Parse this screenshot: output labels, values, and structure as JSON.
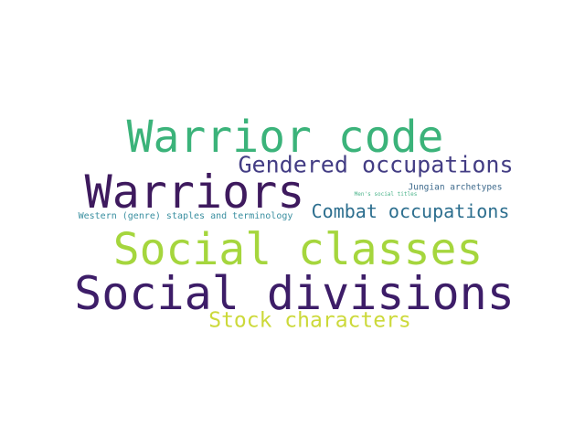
{
  "word_cloud": {
    "words": [
      {
        "id": "warrior-code",
        "text": "Warrior code",
        "color": "#3bb37a"
      },
      {
        "id": "gendered-occupations",
        "text": "Gendered occupations",
        "color": "#433d84"
      },
      {
        "id": "warriors",
        "text": "Warriors",
        "color": "#3e1a5e"
      },
      {
        "id": "jungian-archetypes",
        "text": "Jungian archetypes",
        "color": "#3e6a8c"
      },
      {
        "id": "mens-social-titles",
        "text": "Men's social titles",
        "color": "#4ab38a"
      },
      {
        "id": "combat-occupations",
        "text": "Combat occupations",
        "color": "#2c6e8e"
      },
      {
        "id": "western-genre",
        "text": "Western (genre) staples and terminology",
        "color": "#3a8fa0"
      },
      {
        "id": "social-classes",
        "text": "Social classes",
        "color": "#a5d63d"
      },
      {
        "id": "social-divisions",
        "text": "Social divisions",
        "color": "#3d1d68"
      },
      {
        "id": "stock-characters",
        "text": "Stock characters",
        "color": "#ccd93a"
      }
    ]
  }
}
